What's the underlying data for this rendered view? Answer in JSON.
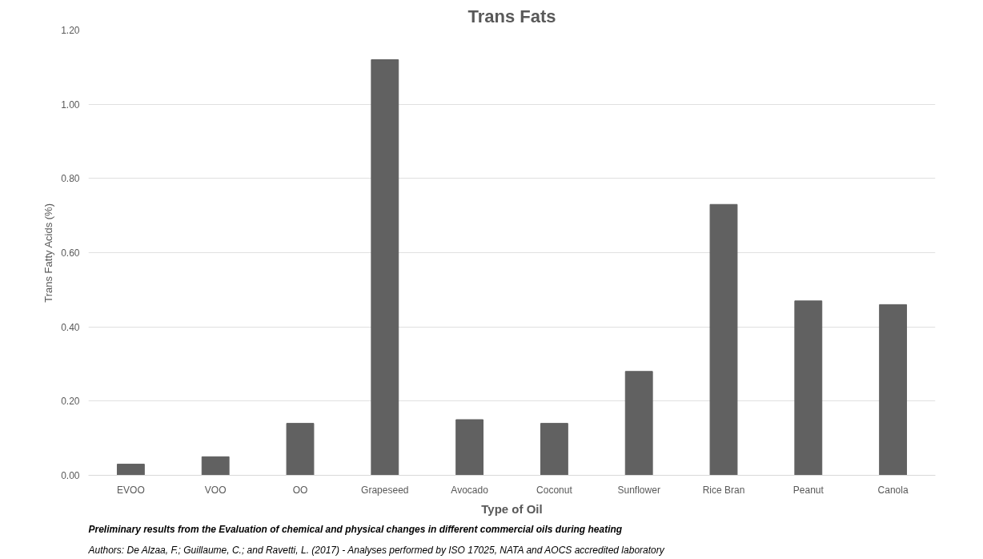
{
  "chart_data": {
    "type": "bar",
    "title": "Trans Fats",
    "xlabel": "Type of Oil",
    "ylabel": "Trans Fatty Acids (%)",
    "categories": [
      "EVOO",
      "VOO",
      "OO",
      "Grapeseed",
      "Avocado",
      "Coconut",
      "Sunflower",
      "Rice Bran",
      "Peanut",
      "Canola"
    ],
    "values": [
      0.03,
      0.05,
      0.14,
      1.12,
      0.15,
      0.14,
      0.28,
      0.73,
      0.47,
      0.46
    ],
    "color": "#616161",
    "ylim": [
      0,
      1.2
    ],
    "yticks": [
      {
        "value": 0,
        "label": "0.00"
      },
      {
        "value": 0.2,
        "label": "0.20"
      },
      {
        "value": 0.4,
        "label": "0.40"
      },
      {
        "value": 0.6,
        "label": "0.60"
      },
      {
        "value": 0.8,
        "label": "0.80"
      },
      {
        "value": 1.0,
        "label": "1.00"
      },
      {
        "value": 1.2,
        "label": "1.20"
      }
    ],
    "grid": "y",
    "annotations": [
      "Preliminary results from the Evaluation of chemical and physical changes in different commercial oils during heating",
      "Authors: De Alzaa, F.; Guillaume, C.; and Ravetti, L. (2017)     -     Analyses performed by ISO 17025, NATA and AOCS accredited laboratory"
    ]
  }
}
